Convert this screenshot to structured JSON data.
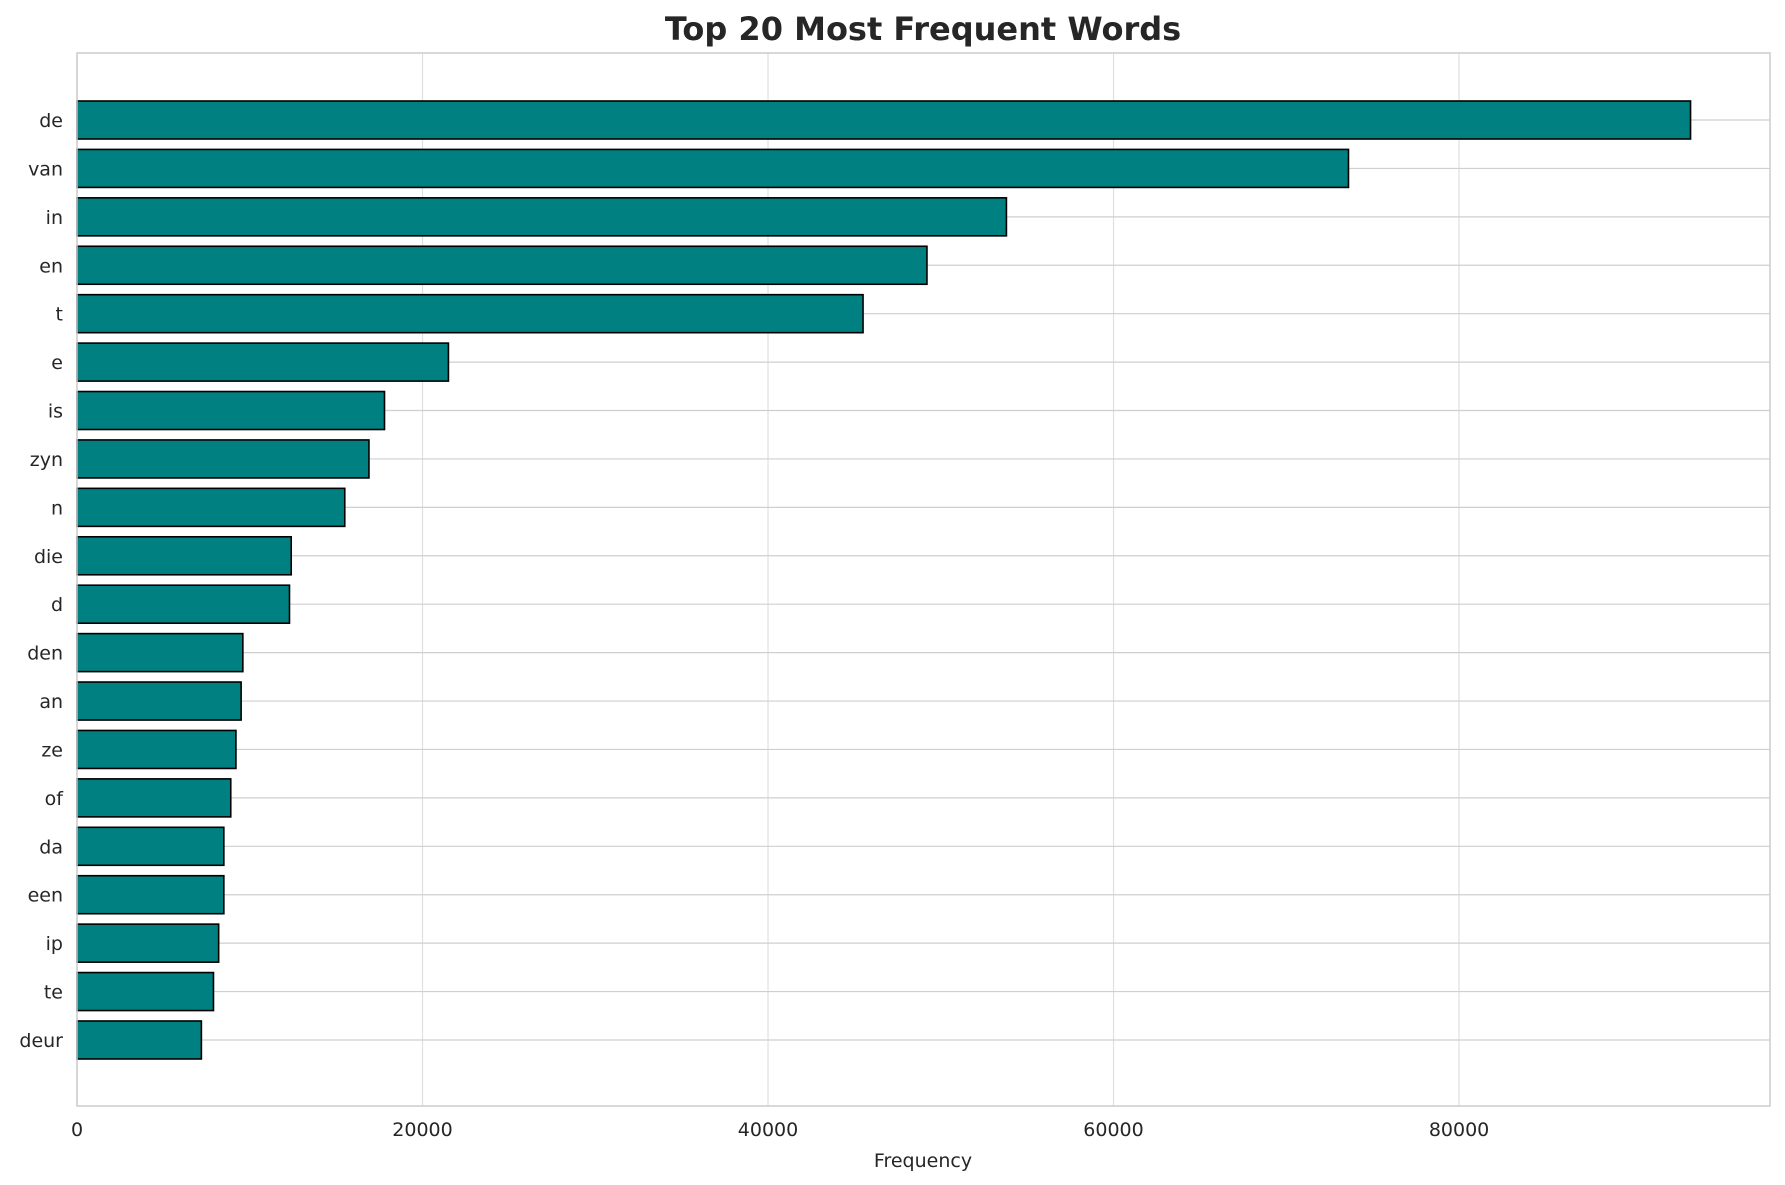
{
  "chart_data": {
    "type": "bar",
    "orientation": "horizontal",
    "title": "Top 20 Most Frequent Words",
    "xlabel": "Frequency",
    "ylabel": "",
    "categories": [
      "de",
      "van",
      "in",
      "en",
      "t",
      "e",
      "is",
      "zyn",
      "n",
      "die",
      "d",
      "den",
      "an",
      "ze",
      "of",
      "da",
      "een",
      "ip",
      "te",
      "deur"
    ],
    "values": [
      93400,
      73600,
      53800,
      49200,
      45500,
      21500,
      17800,
      16900,
      15500,
      12400,
      12300,
      9600,
      9500,
      9200,
      8900,
      8500,
      8500,
      8200,
      7900,
      7200
    ],
    "xticks": [
      "0",
      "20000",
      "40000",
      "60000",
      "80000"
    ],
    "xlim": [
      0,
      98000
    ],
    "grid": true,
    "colors": {
      "bar": "#008080",
      "bar_edge": "#000000",
      "grid": "#e0e0e0",
      "frame": "#cccccc",
      "text": "#262626"
    }
  }
}
